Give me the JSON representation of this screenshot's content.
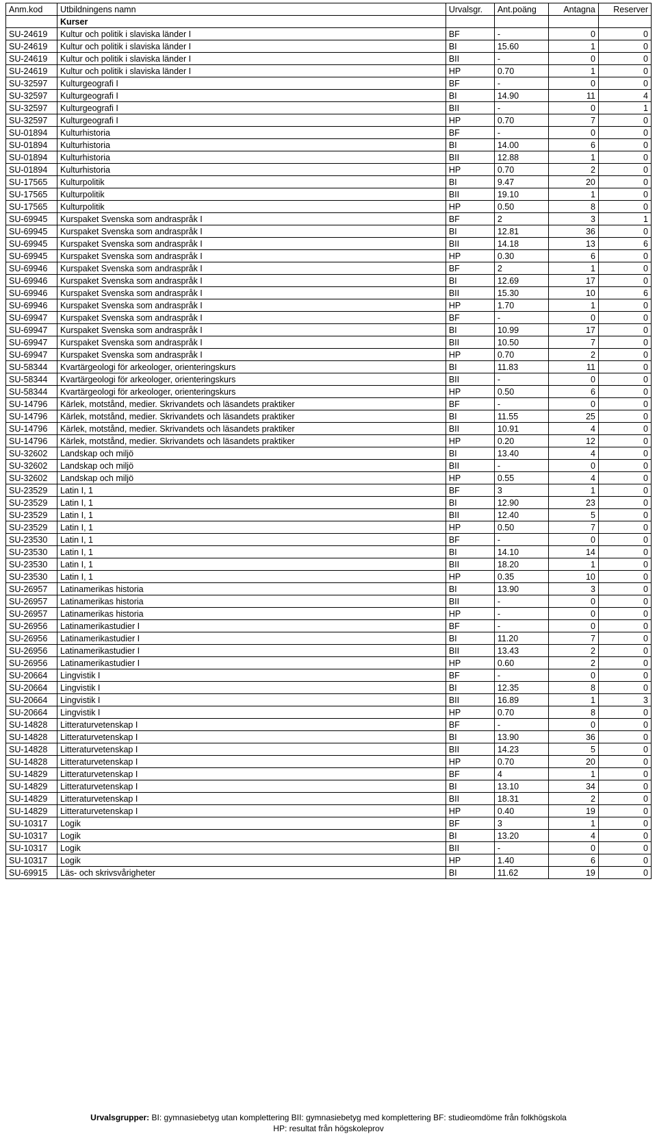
{
  "headers": {
    "code": "Anm.kod",
    "name": "Utbildningens namn",
    "group": "Urvalsgr.",
    "points": "Ant.poäng",
    "antagna": "Antagna",
    "reserver": "Reserver"
  },
  "section_label": "Kurser",
  "rows": [
    [
      "SU-24619",
      "Kultur och politik i slaviska länder I",
      "BF",
      "-",
      "0",
      "0"
    ],
    [
      "SU-24619",
      "Kultur och politik i slaviska länder I",
      "BI",
      "15.60",
      "1",
      "0"
    ],
    [
      "SU-24619",
      "Kultur och politik i slaviska länder I",
      "BII",
      "-",
      "0",
      "0"
    ],
    [
      "SU-24619",
      "Kultur och politik i slaviska länder I",
      "HP",
      "0.70",
      "1",
      "0"
    ],
    [
      "SU-32597",
      "Kulturgeografi I",
      "BF",
      "-",
      "0",
      "0"
    ],
    [
      "SU-32597",
      "Kulturgeografi I",
      "BI",
      "14.90",
      "11",
      "4"
    ],
    [
      "SU-32597",
      "Kulturgeografi I",
      "BII",
      "-",
      "0",
      "1"
    ],
    [
      "SU-32597",
      "Kulturgeografi I",
      "HP",
      "0.70",
      "7",
      "0"
    ],
    [
      "SU-01894",
      "Kulturhistoria",
      "BF",
      "-",
      "0",
      "0"
    ],
    [
      "SU-01894",
      "Kulturhistoria",
      "BI",
      "14.00",
      "6",
      "0"
    ],
    [
      "SU-01894",
      "Kulturhistoria",
      "BII",
      "12.88",
      "1",
      "0"
    ],
    [
      "SU-01894",
      "Kulturhistoria",
      "HP",
      "0.70",
      "2",
      "0"
    ],
    [
      "SU-17565",
      "Kulturpolitik",
      "BI",
      "9.47",
      "20",
      "0"
    ],
    [
      "SU-17565",
      "Kulturpolitik",
      "BII",
      "19.10",
      "1",
      "0"
    ],
    [
      "SU-17565",
      "Kulturpolitik",
      "HP",
      "0.50",
      "8",
      "0"
    ],
    [
      "SU-69945",
      "Kurspaket Svenska som andraspråk I",
      "BF",
      "2",
      "3",
      "1"
    ],
    [
      "SU-69945",
      "Kurspaket Svenska som andraspråk I",
      "BI",
      "12.81",
      "36",
      "0"
    ],
    [
      "SU-69945",
      "Kurspaket Svenska som andraspråk I",
      "BII",
      "14.18",
      "13",
      "6"
    ],
    [
      "SU-69945",
      "Kurspaket Svenska som andraspråk I",
      "HP",
      "0.30",
      "6",
      "0"
    ],
    [
      "SU-69946",
      "Kurspaket Svenska som andraspråk I",
      "BF",
      "2",
      "1",
      "0"
    ],
    [
      "SU-69946",
      "Kurspaket Svenska som andraspråk I",
      "BI",
      "12.69",
      "17",
      "0"
    ],
    [
      "SU-69946",
      "Kurspaket Svenska som andraspråk I",
      "BII",
      "15.30",
      "10",
      "6"
    ],
    [
      "SU-69946",
      "Kurspaket Svenska som andraspråk I",
      "HP",
      "1.70",
      "1",
      "0"
    ],
    [
      "SU-69947",
      "Kurspaket Svenska som andraspråk I",
      "BF",
      "-",
      "0",
      "0"
    ],
    [
      "SU-69947",
      "Kurspaket Svenska som andraspråk I",
      "BI",
      "10.99",
      "17",
      "0"
    ],
    [
      "SU-69947",
      "Kurspaket Svenska som andraspråk I",
      "BII",
      "10.50",
      "7",
      "0"
    ],
    [
      "SU-69947",
      "Kurspaket Svenska som andraspråk I",
      "HP",
      "0.70",
      "2",
      "0"
    ],
    [
      "SU-58344",
      "Kvartärgeologi för arkeologer, orienteringskurs",
      "BI",
      "11.83",
      "11",
      "0"
    ],
    [
      "SU-58344",
      "Kvartärgeologi för arkeologer, orienteringskurs",
      "BII",
      "-",
      "0",
      "0"
    ],
    [
      "SU-58344",
      "Kvartärgeologi för arkeologer, orienteringskurs",
      "HP",
      "0.50",
      "6",
      "0"
    ],
    [
      "SU-14796",
      "Kärlek, motstånd, medier. Skrivandets och läsandets praktiker",
      "BF",
      "-",
      "0",
      "0"
    ],
    [
      "SU-14796",
      "Kärlek, motstånd, medier. Skrivandets och läsandets praktiker",
      "BI",
      "11.55",
      "25",
      "0"
    ],
    [
      "SU-14796",
      "Kärlek, motstånd, medier. Skrivandets och läsandets praktiker",
      "BII",
      "10.91",
      "4",
      "0"
    ],
    [
      "SU-14796",
      "Kärlek, motstånd, medier. Skrivandets och läsandets praktiker",
      "HP",
      "0.20",
      "12",
      "0"
    ],
    [
      "SU-32602",
      "Landskap och miljö",
      "BI",
      "13.40",
      "4",
      "0"
    ],
    [
      "SU-32602",
      "Landskap och miljö",
      "BII",
      "-",
      "0",
      "0"
    ],
    [
      "SU-32602",
      "Landskap och miljö",
      "HP",
      "0.55",
      "4",
      "0"
    ],
    [
      "SU-23529",
      "Latin I, 1",
      "BF",
      "3",
      "1",
      "0"
    ],
    [
      "SU-23529",
      "Latin I, 1",
      "BI",
      "12.90",
      "23",
      "0"
    ],
    [
      "SU-23529",
      "Latin I, 1",
      "BII",
      "12.40",
      "5",
      "0"
    ],
    [
      "SU-23529",
      "Latin I, 1",
      "HP",
      "0.50",
      "7",
      "0"
    ],
    [
      "SU-23530",
      "Latin I, 1",
      "BF",
      "-",
      "0",
      "0"
    ],
    [
      "SU-23530",
      "Latin I, 1",
      "BI",
      "14.10",
      "14",
      "0"
    ],
    [
      "SU-23530",
      "Latin I, 1",
      "BII",
      "18.20",
      "1",
      "0"
    ],
    [
      "SU-23530",
      "Latin I, 1",
      "HP",
      "0.35",
      "10",
      "0"
    ],
    [
      "SU-26957",
      "Latinamerikas historia",
      "BI",
      "13.90",
      "3",
      "0"
    ],
    [
      "SU-26957",
      "Latinamerikas historia",
      "BII",
      "-",
      "0",
      "0"
    ],
    [
      "SU-26957",
      "Latinamerikas historia",
      "HP",
      "-",
      "0",
      "0"
    ],
    [
      "SU-26956",
      "Latinamerikastudier I",
      "BF",
      "-",
      "0",
      "0"
    ],
    [
      "SU-26956",
      "Latinamerikastudier I",
      "BI",
      "11.20",
      "7",
      "0"
    ],
    [
      "SU-26956",
      "Latinamerikastudier I",
      "BII",
      "13.43",
      "2",
      "0"
    ],
    [
      "SU-26956",
      "Latinamerikastudier I",
      "HP",
      "0.60",
      "2",
      "0"
    ],
    [
      "SU-20664",
      "Lingvistik I",
      "BF",
      "-",
      "0",
      "0"
    ],
    [
      "SU-20664",
      "Lingvistik I",
      "BI",
      "12.35",
      "8",
      "0"
    ],
    [
      "SU-20664",
      "Lingvistik I",
      "BII",
      "16.89",
      "1",
      "3"
    ],
    [
      "SU-20664",
      "Lingvistik I",
      "HP",
      "0.70",
      "8",
      "0"
    ],
    [
      "SU-14828",
      "Litteraturvetenskap I",
      "BF",
      "-",
      "0",
      "0"
    ],
    [
      "SU-14828",
      "Litteraturvetenskap I",
      "BI",
      "13.90",
      "36",
      "0"
    ],
    [
      "SU-14828",
      "Litteraturvetenskap I",
      "BII",
      "14.23",
      "5",
      "0"
    ],
    [
      "SU-14828",
      "Litteraturvetenskap I",
      "HP",
      "0.70",
      "20",
      "0"
    ],
    [
      "SU-14829",
      "Litteraturvetenskap I",
      "BF",
      "4",
      "1",
      "0"
    ],
    [
      "SU-14829",
      "Litteraturvetenskap I",
      "BI",
      "13.10",
      "34",
      "0"
    ],
    [
      "SU-14829",
      "Litteraturvetenskap I",
      "BII",
      "18.31",
      "2",
      "0"
    ],
    [
      "SU-14829",
      "Litteraturvetenskap I",
      "HP",
      "0.40",
      "19",
      "0"
    ],
    [
      "SU-10317",
      "Logik",
      "BF",
      "3",
      "1",
      "0"
    ],
    [
      "SU-10317",
      "Logik",
      "BI",
      "13.20",
      "4",
      "0"
    ],
    [
      "SU-10317",
      "Logik",
      "BII",
      "-",
      "0",
      "0"
    ],
    [
      "SU-10317",
      "Logik",
      "HP",
      "1.40",
      "6",
      "0"
    ],
    [
      "SU-69915",
      "Läs- och skrivsvårigheter",
      "BI",
      "11.62",
      "19",
      "0"
    ]
  ],
  "footer": {
    "line1_bold": "Urvalsgrupper:",
    "line1_rest": "  BI: gymnasiebetyg utan komplettering   BII: gymnasiebetyg med komplettering   BF: studieomdöme från folkhögskola",
    "line2": "HP: resultat från högskoleprov"
  }
}
